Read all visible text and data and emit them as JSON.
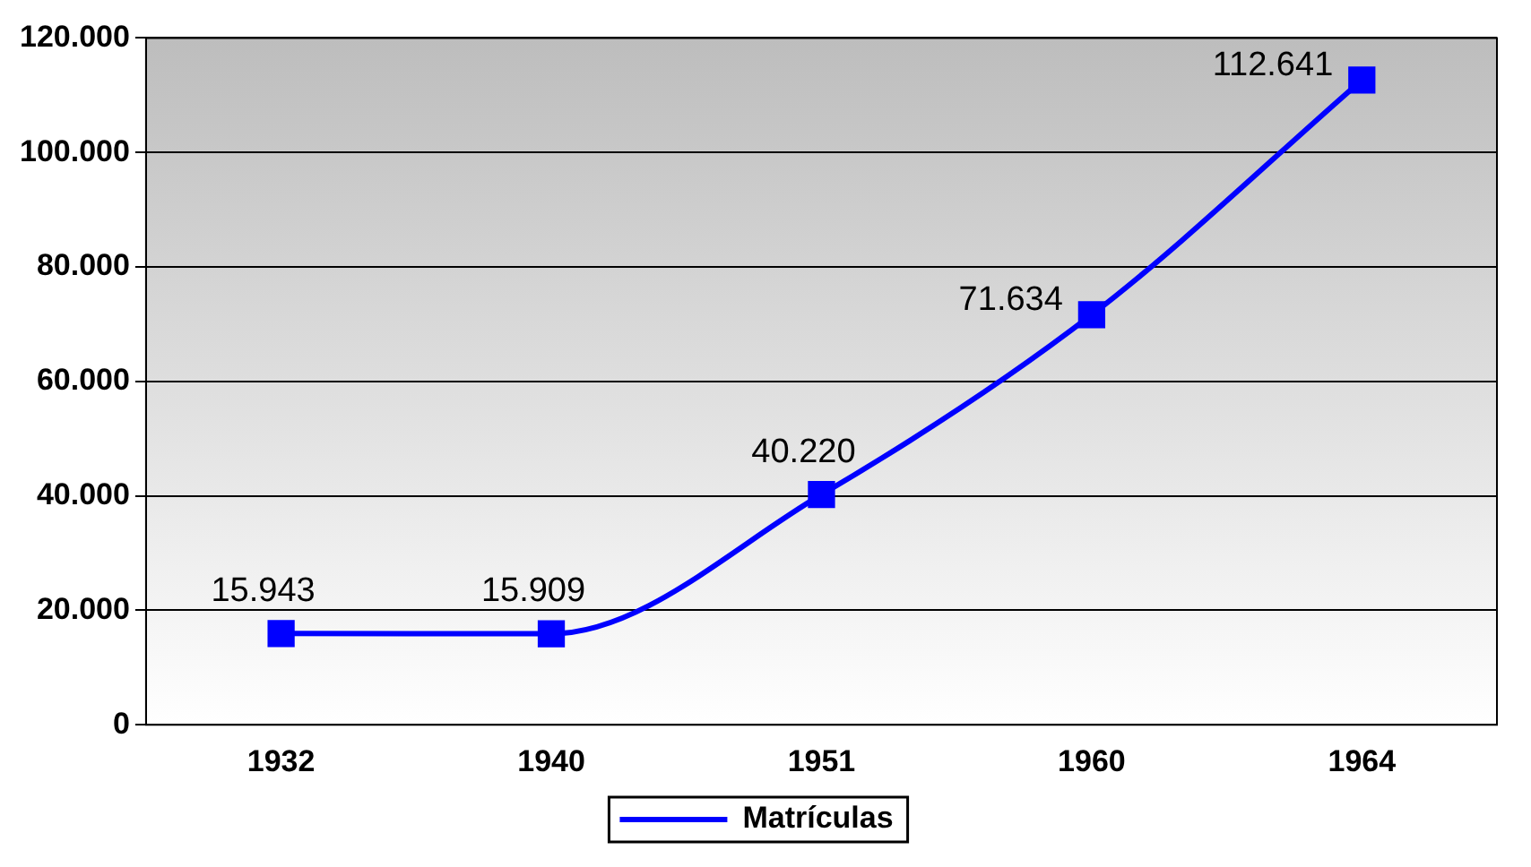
{
  "chart_data": {
    "type": "line",
    "categories": [
      "1932",
      "1940",
      "1951",
      "1960",
      "1964"
    ],
    "series": [
      {
        "name": "Matrículas",
        "color": "#0000ff",
        "values": [
          15943,
          15909,
          40220,
          71634,
          112641
        ],
        "value_labels": [
          "15.943",
          "15.909",
          "40.220",
          "71.634",
          "112.641"
        ]
      }
    ],
    "ylim": [
      0,
      120000
    ],
    "yticks": [
      {
        "value": 0,
        "label": "0"
      },
      {
        "value": 20000,
        "label": "20.000"
      },
      {
        "value": 40000,
        "label": "40.000"
      },
      {
        "value": 60000,
        "label": "60.000"
      },
      {
        "value": 80000,
        "label": "80.000"
      },
      {
        "value": 100000,
        "label": "100.000"
      },
      {
        "value": 120000,
        "label": "120.000"
      }
    ],
    "grid": "y",
    "legend": "bottom",
    "marker": "square",
    "line_style": "solid"
  }
}
